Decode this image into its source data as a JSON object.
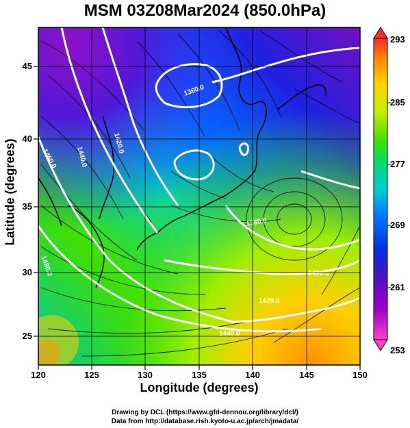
{
  "title": "MSM 03Z08Mar2024 (850.0hPa)",
  "axes": {
    "x_label": "Longitude (degrees)",
    "y_label": "Latitude  (degrees)",
    "x_ticks": [
      "120",
      "125",
      "130",
      "135",
      "140",
      "145",
      "150"
    ],
    "y_ticks": [
      "25",
      "30",
      "35",
      "40",
      "45"
    ],
    "xlim": [
      120,
      150
    ],
    "ylim": [
      22.4,
      47.6
    ]
  },
  "colorbar": {
    "labels": [
      "293",
      "285",
      "277",
      "269",
      "261",
      "253"
    ],
    "range": [
      253,
      293
    ],
    "colors": [
      "#ff2a2a",
      "#ff8a00",
      "#ffd200",
      "#c8ee00",
      "#40e000",
      "#00d87a",
      "#00d0d0",
      "#0080ff",
      "#0030e0",
      "#5010c0",
      "#a000c8",
      "#ff40c8"
    ]
  },
  "contours": {
    "labels": [
      "1380.0",
      "1400.0",
      "1420.0",
      "1440.0",
      "1460.0",
      "1480.0",
      "1360.0"
    ],
    "color": "#ffffff"
  },
  "credits": {
    "line1": "Drawing by DCL (https://www.gfd-dennou.org/library/dcl/)",
    "line2": "Data from http://database.rish.kyoto-u.ac.jp/arch/jmadata/"
  },
  "chart_data": {
    "type": "heatmap",
    "title": "MSM 03Z08Mar2024 (850.0hPa)",
    "xlabel": "Longitude (degrees)",
    "ylabel": "Latitude  (degrees)",
    "xlim": [
      120,
      150
    ],
    "ylim": [
      22.4,
      47.6
    ],
    "colorbar_range": [
      253,
      293
    ],
    "overlays": [
      "temperature shading",
      "geopotential height contours",
      "wind streamlines",
      "coastlines",
      "lat/lon grid"
    ],
    "low_center": {
      "lon": 143.5,
      "lat": 34.5
    }
  }
}
